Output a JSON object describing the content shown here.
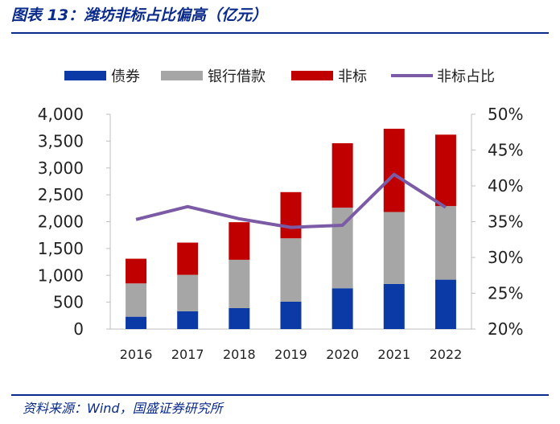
{
  "header": {
    "title": "图表 13：潍坊非标占比偏高（亿元）"
  },
  "source": "资料来源：Wind，国盛证券研究所",
  "chart_data": {
    "type": "bar",
    "stacked": true,
    "categories": [
      "2016",
      "2017",
      "2018",
      "2019",
      "2020",
      "2021",
      "2022"
    ],
    "series": [
      {
        "name": "债券",
        "kind": "bar",
        "axis": "left",
        "color": "#0b3aa6",
        "values": [
          230,
          330,
          390,
          510,
          760,
          840,
          920
        ]
      },
      {
        "name": "银行借款",
        "kind": "bar",
        "axis": "left",
        "color": "#a6a6a6",
        "values": [
          620,
          680,
          900,
          1180,
          1500,
          1340,
          1370
        ]
      },
      {
        "name": "非标",
        "kind": "bar",
        "axis": "left",
        "color": "#c00000",
        "values": [
          460,
          600,
          700,
          860,
          1200,
          1550,
          1330
        ]
      },
      {
        "name": "非标占比",
        "kind": "line",
        "axis": "right",
        "color": "#7b5aa6",
        "values": [
          35.3,
          37.1,
          35.4,
          34.2,
          34.5,
          41.6,
          37.0
        ]
      }
    ],
    "y_left": {
      "lim": [
        0,
        4000
      ],
      "ticks": [
        "0",
        "500",
        "1,000",
        "1,500",
        "2,000",
        "2,500",
        "3,000",
        "3,500",
        "4,000"
      ]
    },
    "y_right": {
      "lim": [
        20,
        50
      ],
      "ticks": [
        "20%",
        "25%",
        "30%",
        "35%",
        "40%",
        "45%",
        "50%"
      ]
    },
    "grid": false,
    "legend_position": "top"
  }
}
